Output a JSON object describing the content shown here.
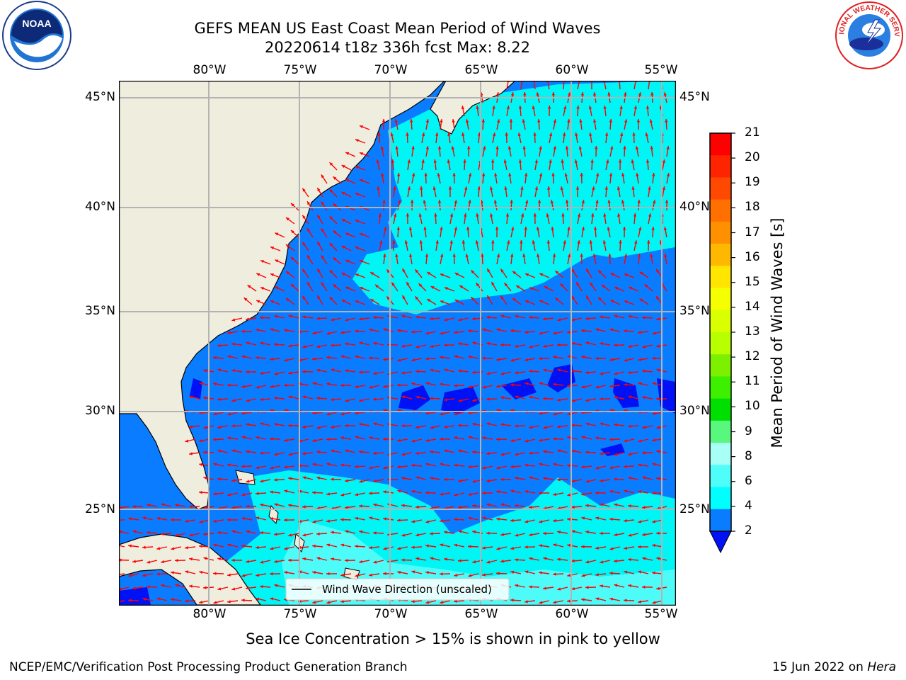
{
  "header": {
    "title_line1": "GEFS MEAN US East Coast Mean Period of Wind Waves",
    "title_line2": "20220614 t18z 336h fcst   Max: 8.22"
  },
  "logos": {
    "noaa_text": "NOAA",
    "noaa_ring": "NATIONAL OCEANIC AND ATMOSPHERIC ADMINISTRATION · U.S. DEPARTMENT OF COMMERCE",
    "nws_ring": "NATIONAL WEATHER SERVICE"
  },
  "map": {
    "lon_labels": [
      "80°W",
      "75°W",
      "70°W",
      "65°W",
      "60°W",
      "55°W"
    ],
    "lat_labels": [
      "45°N",
      "40°N",
      "35°N",
      "30°N",
      "25°N"
    ],
    "legend_label": "Wind Wave Direction (unscaled)",
    "colors": {
      "land": "#efedde",
      "water_low": "#0a7cff",
      "water_mid": "#00f5f5",
      "water_high": "#4dfcf9",
      "min_band": "#0012f5",
      "arrow": "#ff0000",
      "grid": "#b3b3b3"
    }
  },
  "colorbar": {
    "title": "Mean Period of Wind Waves [s]",
    "ticks": [
      "21",
      "20",
      "19",
      "18",
      "17",
      "16",
      "15",
      "14",
      "13",
      "12",
      "11",
      "10",
      "9",
      "8",
      "6",
      "4",
      "2"
    ],
    "colors": [
      "#ff0000",
      "#ff2400",
      "#ff4900",
      "#ff7000",
      "#ff9000",
      "#ffb800",
      "#ffe500",
      "#f5ff00",
      "#d9ff00",
      "#b8ff00",
      "#7df000",
      "#3cf000",
      "#00e000",
      "#57f87d",
      "#a8fff5",
      "#4dfff8",
      "#00ffff",
      "#0a7cff",
      "#0012f5"
    ]
  },
  "footer": {
    "note": "Sea Ice Concentration > 15% is shown in pink to yellow",
    "left": "NCEP/EMC/Verification Post Processing Product Generation Branch",
    "right_date": "15 Jun 2022 on ",
    "right_machine": "Hera"
  }
}
